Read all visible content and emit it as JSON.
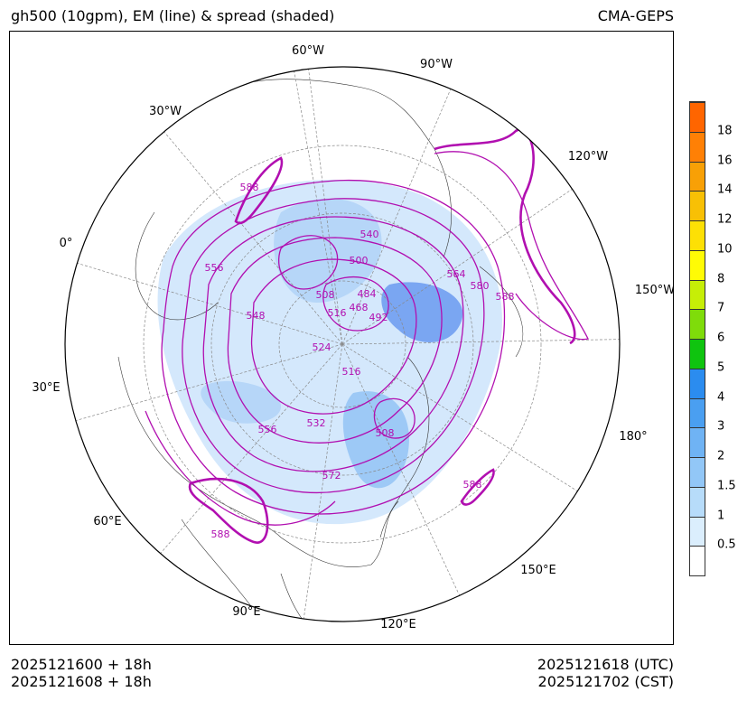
{
  "header": {
    "title_left": "gh500 (10gpm), EM (line) & spread (shaded)",
    "title_right": "CMA-GEPS"
  },
  "footer": {
    "init_utc": "2025121600 + 18h",
    "init_cst": "2025121608 + 18h",
    "valid_utc": "2025121618 (UTC)",
    "valid_cst": "2025121702 (CST)"
  },
  "map": {
    "projection": "north-polar-stereographic",
    "meridian_labels": [
      "60°W",
      "90°W",
      "120°W",
      "150°W",
      "180°",
      "150°E",
      "120°E",
      "90°E",
      "60°E",
      "30°E",
      "0°",
      "30°W"
    ],
    "contour_labels": [
      "588",
      "556",
      "540",
      "500",
      "564",
      "580",
      "588",
      "484",
      "468",
      "508",
      "516",
      "492",
      "548",
      "524",
      "516",
      "532",
      "556",
      "508",
      "572",
      "588",
      "588"
    ],
    "colors": {
      "contour": "#b10fb0",
      "spread_light": "#d4e8fc",
      "spread_mid": "#9dc9f6",
      "spread_dark": "#6e8cf0",
      "coast": "#333333",
      "grid": "#888888"
    }
  },
  "colorbar": {
    "labels": [
      "0.5",
      "1",
      "1.5",
      "2",
      "3",
      "4",
      "5",
      "6",
      "7",
      "8",
      "10",
      "12",
      "14",
      "16",
      "18"
    ],
    "colors": [
      "#ffffff",
      "#dbeefd",
      "#b7dcfa",
      "#92c7f7",
      "#6fb3f4",
      "#4a9ff1",
      "#2b8cef",
      "#0fc40f",
      "#7fdc0a",
      "#c6ee07",
      "#fffb05",
      "#fde005",
      "#f8c005",
      "#f8a006",
      "#ff8005",
      "#ff6500"
    ]
  }
}
